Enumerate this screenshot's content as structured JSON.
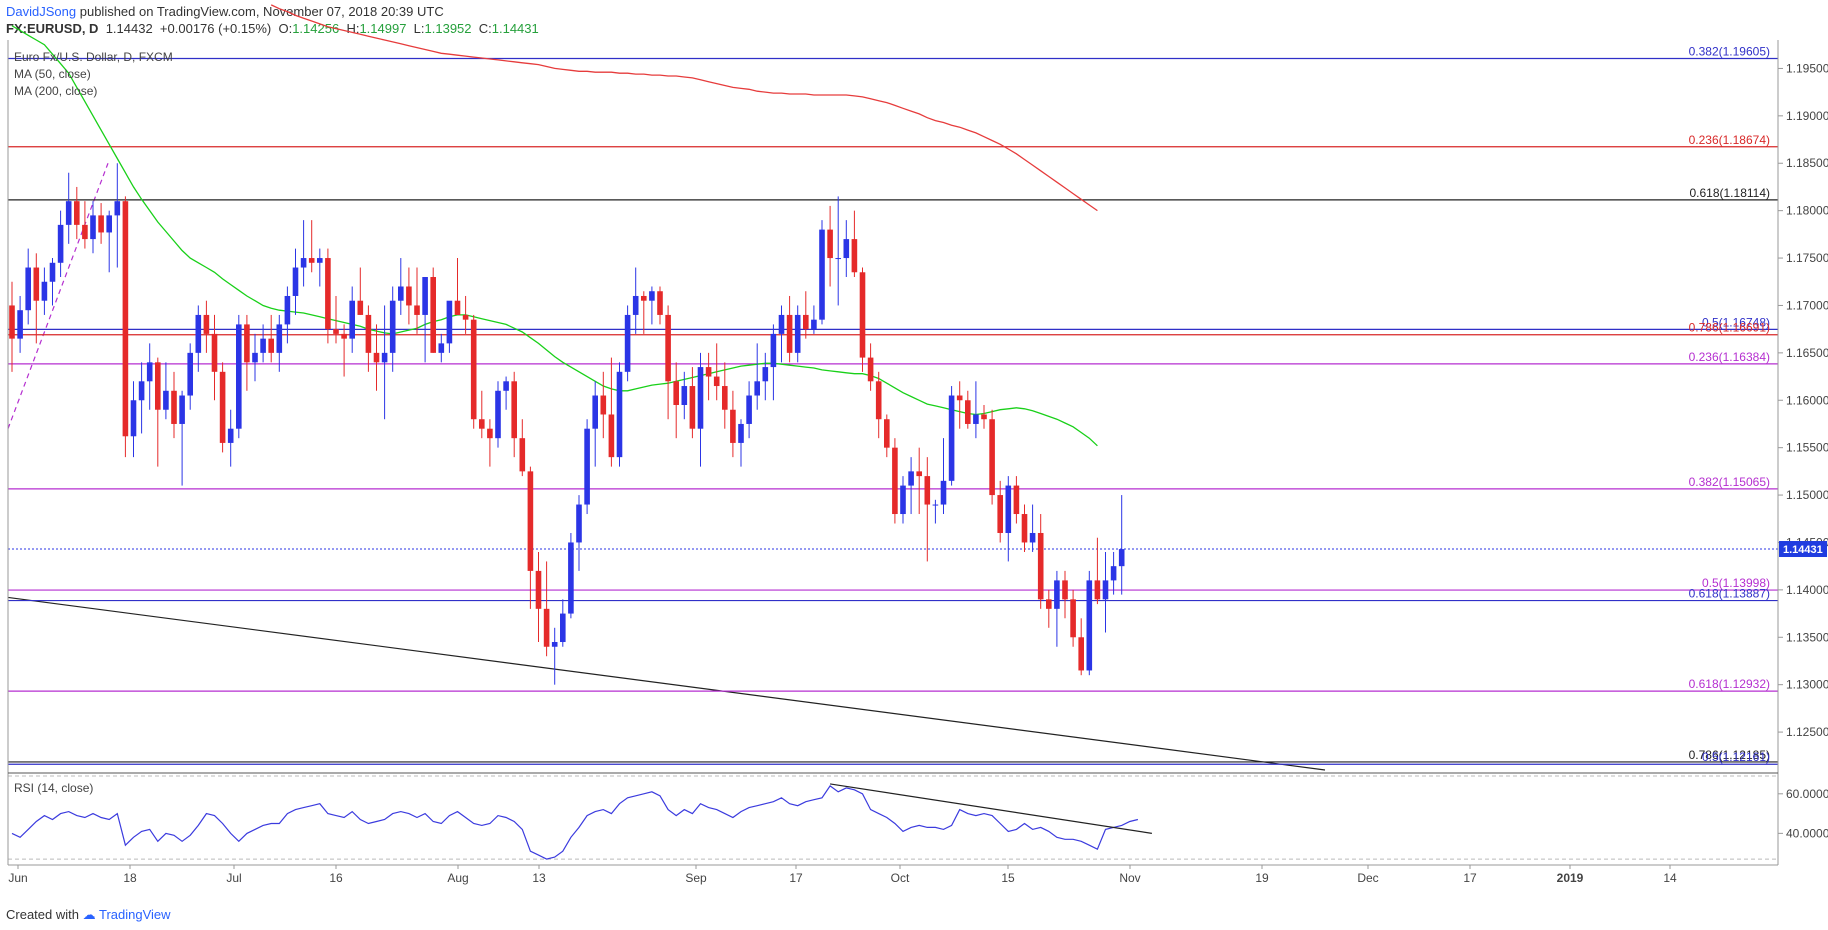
{
  "header": {
    "author": "DavidJSong",
    "published_text": "published on TradingView.com, November 07, 2018 20:39 UTC",
    "symbol": "FX:EURUSD, D",
    "last": "1.14432",
    "change_arrow": "▲",
    "change": "+0.00176 (+0.15%)",
    "open_label": "O:",
    "open": "1.14256",
    "high_label": "H:",
    "high": "1.14997",
    "low_label": "L:",
    "low": "1.13952",
    "close_label": "C:",
    "close": "1.14431"
  },
  "legend": {
    "instrument": "Euro Fx/U.S. Dollar, D, FXCM",
    "ma50": "MA (50, close)",
    "ma200": "MA (200, close)",
    "rsi": "RSI (14, close)"
  },
  "footer": {
    "created_with": "Created with",
    "brand": "TradingView"
  },
  "colors": {
    "up": "#2b35e6",
    "down": "#e52a2a",
    "ma50": "#19d019",
    "ma200": "#e63c3c",
    "fib_purple": "#b52fd0",
    "fib_blue": "#3030c8",
    "rsi_line": "#3b3bde",
    "last_price_bg": "#1f3ce0"
  },
  "chart_data": {
    "type": "candlestick",
    "symbol": "EURUSD",
    "price_range": [
      1.121,
      1.198
    ],
    "rsi_range": [
      24,
      69
    ],
    "x_ticks": [
      "Jun",
      "18",
      "Jul",
      "16",
      "Aug",
      "13",
      "Sep",
      "17",
      "Oct",
      "15",
      "Nov",
      "19",
      "Dec",
      "17",
      "2019",
      "14"
    ],
    "price_ticks": [
      "1.19500",
      "1.19000",
      "1.18500",
      "1.18000",
      "1.17500",
      "1.17000",
      "1.16500",
      "1.16000",
      "1.15500",
      "1.15000",
      "1.14500",
      "1.14000",
      "1.13500",
      "1.13000",
      "1.12500"
    ],
    "rsi_ticks": [
      "60.0000",
      "40.0000"
    ],
    "last_price_label": "1.14431",
    "candles": [
      [
        1.17,
        1.1725,
        1.163,
        1.1665
      ],
      [
        1.1665,
        1.171,
        1.165,
        1.1695
      ],
      [
        1.1695,
        1.176,
        1.168,
        1.174
      ],
      [
        1.174,
        1.1755,
        1.166,
        1.1705
      ],
      [
        1.1705,
        1.174,
        1.169,
        1.1725
      ],
      [
        1.1725,
        1.175,
        1.17,
        1.1745
      ],
      [
        1.1745,
        1.18,
        1.173,
        1.1785
      ],
      [
        1.1785,
        1.184,
        1.1765,
        1.181
      ],
      [
        1.181,
        1.1825,
        1.177,
        1.1785
      ],
      [
        1.1785,
        1.181,
        1.176,
        1.177
      ],
      [
        1.177,
        1.181,
        1.1755,
        1.1795
      ],
      [
        1.1795,
        1.1808,
        1.1765,
        1.1777
      ],
      [
        1.1777,
        1.18,
        1.1735,
        1.1795
      ],
      [
        1.1795,
        1.185,
        1.174,
        1.181
      ],
      [
        1.181,
        1.1815,
        1.154,
        1.1562
      ],
      [
        1.1562,
        1.162,
        1.154,
        1.16
      ],
      [
        1.16,
        1.164,
        1.1565,
        1.162
      ],
      [
        1.162,
        1.166,
        1.159,
        1.164
      ],
      [
        1.164,
        1.1645,
        1.153,
        1.159
      ],
      [
        1.159,
        1.164,
        1.158,
        1.161
      ],
      [
        1.161,
        1.163,
        1.156,
        1.1575
      ],
      [
        1.1575,
        1.161,
        1.151,
        1.1605
      ],
      [
        1.1605,
        1.166,
        1.159,
        1.165
      ],
      [
        1.165,
        1.17,
        1.163,
        1.169
      ],
      [
        1.169,
        1.1705,
        1.165,
        1.167
      ],
      [
        1.167,
        1.169,
        1.16,
        1.163
      ],
      [
        1.163,
        1.164,
        1.1545,
        1.1555
      ],
      [
        1.1555,
        1.159,
        1.153,
        1.157
      ],
      [
        1.157,
        1.169,
        1.156,
        1.168
      ],
      [
        1.168,
        1.169,
        1.161,
        1.164
      ],
      [
        1.164,
        1.167,
        1.162,
        1.165
      ],
      [
        1.165,
        1.168,
        1.164,
        1.1665
      ],
      [
        1.1665,
        1.169,
        1.164,
        1.165
      ],
      [
        1.165,
        1.169,
        1.163,
        1.168
      ],
      [
        1.168,
        1.172,
        1.166,
        1.171
      ],
      [
        1.171,
        1.176,
        1.169,
        1.174
      ],
      [
        1.174,
        1.179,
        1.172,
        1.175
      ],
      [
        1.175,
        1.179,
        1.1735,
        1.1745
      ],
      [
        1.1745,
        1.176,
        1.172,
        1.175
      ],
      [
        1.175,
        1.176,
        1.166,
        1.1675
      ],
      [
        1.1675,
        1.171,
        1.166,
        1.167
      ],
      [
        1.167,
        1.168,
        1.1625,
        1.1665
      ],
      [
        1.1665,
        1.172,
        1.165,
        1.1705
      ],
      [
        1.1705,
        1.174,
        1.169,
        1.169
      ],
      [
        1.169,
        1.17,
        1.163,
        1.165
      ],
      [
        1.165,
        1.168,
        1.161,
        1.164
      ],
      [
        1.164,
        1.17,
        1.158,
        1.165
      ],
      [
        1.165,
        1.172,
        1.163,
        1.1705
      ],
      [
        1.1705,
        1.175,
        1.169,
        1.172
      ],
      [
        1.172,
        1.174,
        1.168,
        1.17
      ],
      [
        1.17,
        1.174,
        1.167,
        1.169
      ],
      [
        1.169,
        1.173,
        1.164,
        1.173
      ],
      [
        1.173,
        1.174,
        1.165,
        1.165
      ],
      [
        1.165,
        1.167,
        1.164,
        1.166
      ],
      [
        1.166,
        1.17,
        1.165,
        1.1705
      ],
      [
        1.1705,
        1.175,
        1.169,
        1.169
      ],
      [
        1.169,
        1.171,
        1.167,
        1.1685
      ],
      [
        1.1685,
        1.169,
        1.157,
        1.158
      ],
      [
        1.158,
        1.161,
        1.156,
        1.157
      ],
      [
        1.157,
        1.158,
        1.153,
        1.156
      ],
      [
        1.156,
        1.162,
        1.155,
        1.161
      ],
      [
        1.161,
        1.1625,
        1.159,
        1.162
      ],
      [
        1.162,
        1.163,
        1.154,
        1.156
      ],
      [
        1.156,
        1.158,
        1.152,
        1.1525
      ],
      [
        1.1525,
        1.153,
        1.138,
        1.142
      ],
      [
        1.142,
        1.144,
        1.1345,
        1.138
      ],
      [
        1.138,
        1.143,
        1.133,
        1.134
      ],
      [
        1.134,
        1.136,
        1.13,
        1.1345
      ],
      [
        1.1345,
        1.139,
        1.134,
        1.1375
      ],
      [
        1.1375,
        1.146,
        1.137,
        1.145
      ],
      [
        1.145,
        1.15,
        1.142,
        1.149
      ],
      [
        1.149,
        1.158,
        1.148,
        1.157
      ],
      [
        1.157,
        1.162,
        1.153,
        1.1605
      ],
      [
        1.1605,
        1.163,
        1.156,
        1.1585
      ],
      [
        1.1585,
        1.1645,
        1.153,
        1.154
      ],
      [
        1.154,
        1.164,
        1.153,
        1.163
      ],
      [
        1.163,
        1.17,
        1.162,
        1.169
      ],
      [
        1.169,
        1.174,
        1.167,
        1.171
      ],
      [
        1.171,
        1.1715,
        1.167,
        1.1705
      ],
      [
        1.1705,
        1.172,
        1.168,
        1.1715
      ],
      [
        1.1715,
        1.172,
        1.168,
        1.169
      ],
      [
        1.169,
        1.17,
        1.158,
        1.162
      ],
      [
        1.162,
        1.164,
        1.156,
        1.1595
      ],
      [
        1.1595,
        1.163,
        1.158,
        1.1615
      ],
      [
        1.1615,
        1.1635,
        1.156,
        1.157
      ],
      [
        1.157,
        1.165,
        1.153,
        1.1635
      ],
      [
        1.1635,
        1.165,
        1.16,
        1.1625
      ],
      [
        1.1625,
        1.166,
        1.16,
        1.1615
      ],
      [
        1.1615,
        1.164,
        1.157,
        1.159
      ],
      [
        1.159,
        1.161,
        1.154,
        1.1555
      ],
      [
        1.1555,
        1.158,
        1.153,
        1.1575
      ],
      [
        1.1575,
        1.162,
        1.156,
        1.1605
      ],
      [
        1.1605,
        1.166,
        1.159,
        1.162
      ],
      [
        1.162,
        1.165,
        1.16,
        1.1635
      ],
      [
        1.1635,
        1.168,
        1.16,
        1.167
      ],
      [
        1.167,
        1.17,
        1.164,
        1.169
      ],
      [
        1.169,
        1.171,
        1.164,
        1.165
      ],
      [
        1.165,
        1.17,
        1.164,
        1.169
      ],
      [
        1.169,
        1.1715,
        1.1665,
        1.1675
      ],
      [
        1.1675,
        1.17,
        1.167,
        1.1685
      ],
      [
        1.1685,
        1.179,
        1.168,
        1.178
      ],
      [
        1.178,
        1.1805,
        1.172,
        1.175
      ],
      [
        1.175,
        1.1815,
        1.17,
        1.175
      ],
      [
        1.175,
        1.179,
        1.173,
        1.177
      ],
      [
        1.177,
        1.18,
        1.173,
        1.1735
      ],
      [
        1.1735,
        1.174,
        1.163,
        1.1645
      ],
      [
        1.1645,
        1.166,
        1.161,
        1.162
      ],
      [
        1.162,
        1.163,
        1.156,
        1.158
      ],
      [
        1.158,
        1.1585,
        1.154,
        1.155
      ],
      [
        1.155,
        1.156,
        1.147,
        1.148
      ],
      [
        1.148,
        1.152,
        1.147,
        1.151
      ],
      [
        1.151,
        1.154,
        1.148,
        1.1525
      ],
      [
        1.1525,
        1.155,
        1.148,
        1.152
      ],
      [
        1.152,
        1.154,
        1.143,
        1.149
      ],
      [
        1.149,
        1.1495,
        1.147,
        1.149
      ],
      [
        1.149,
        1.156,
        1.148,
        1.1515
      ],
      [
        1.1515,
        1.1615,
        1.151,
        1.1605
      ],
      [
        1.1605,
        1.162,
        1.157,
        1.16
      ],
      [
        1.16,
        1.161,
        1.157,
        1.1575
      ],
      [
        1.1575,
        1.162,
        1.156,
        1.1585
      ],
      [
        1.1585,
        1.1595,
        1.157,
        1.158
      ],
      [
        1.158,
        1.159,
        1.149,
        1.15
      ],
      [
        1.15,
        1.1515,
        1.145,
        1.146
      ],
      [
        1.146,
        1.152,
        1.143,
        1.151
      ],
      [
        1.151,
        1.152,
        1.147,
        1.148
      ],
      [
        1.148,
        1.149,
        1.144,
        1.145
      ],
      [
        1.145,
        1.149,
        1.144,
        1.146
      ],
      [
        1.146,
        1.148,
        1.138,
        1.139
      ],
      [
        1.139,
        1.14,
        1.136,
        1.138
      ],
      [
        1.138,
        1.142,
        1.134,
        1.141
      ],
      [
        1.141,
        1.142,
        1.137,
        1.139
      ],
      [
        1.139,
        1.14,
        1.134,
        1.135
      ],
      [
        1.135,
        1.137,
        1.131,
        1.1315
      ],
      [
        1.1315,
        1.142,
        1.131,
        1.141
      ],
      [
        1.141,
        1.1455,
        1.1385,
        1.139
      ],
      [
        1.139,
        1.144,
        1.1355,
        1.141
      ],
      [
        1.141,
        1.144,
        1.1395,
        1.1425
      ],
      [
        1.1425,
        1.15,
        1.1395,
        1.1443
      ]
    ],
    "ma50": [
      1.1995,
      1.199,
      1.1985,
      1.198,
      1.1975,
      1.1965,
      1.1955,
      1.1945,
      1.193,
      1.1915,
      1.19,
      1.1885,
      1.187,
      1.1855,
      1.184,
      1.1825,
      1.1812,
      1.18,
      1.1788,
      1.1778,
      1.1768,
      1.1758,
      1.175,
      1.1745,
      1.174,
      1.1735,
      1.1728,
      1.1722,
      1.1716,
      1.171,
      1.1705,
      1.17,
      1.1697,
      1.1695,
      1.1694,
      1.1693,
      1.1692,
      1.169,
      1.1688,
      1.1686,
      1.1684,
      1.1682,
      1.168,
      1.1678,
      1.1675,
      1.1673,
      1.1671,
      1.167,
      1.1672,
      1.1674,
      1.1676,
      1.168,
      1.1683,
      1.1685,
      1.1688,
      1.169,
      1.169,
      1.1688,
      1.1686,
      1.1684,
      1.1682,
      1.168,
      1.1676,
      1.1672,
      1.1666,
      1.166,
      1.1653,
      1.1646,
      1.164,
      1.1635,
      1.163,
      1.1625,
      1.162,
      1.1615,
      1.1612,
      1.161,
      1.161,
      1.1612,
      1.1614,
      1.1616,
      1.1617,
      1.1618,
      1.162,
      1.1622,
      1.1624,
      1.1626,
      1.1628,
      1.163,
      1.1632,
      1.1634,
      1.1636,
      1.1637,
      1.1638,
      1.1639,
      1.1639,
      1.1638,
      1.1637,
      1.1636,
      1.1635,
      1.1634,
      1.1632,
      1.1631,
      1.163,
      1.1629,
      1.1628,
      1.1628,
      1.1626,
      1.1623,
      1.1618,
      1.1613,
      1.1608,
      1.1604,
      1.16,
      1.1596,
      1.1594,
      1.1592,
      1.159,
      1.1588,
      1.1586,
      1.1585,
      1.1586,
      1.1588,
      1.159,
      1.1591,
      1.1592,
      1.1591,
      1.1589,
      1.1586,
      1.1583,
      1.158,
      1.1576,
      1.1572,
      1.1566,
      1.156,
      1.1552
    ],
    "ma200": [
      null,
      null,
      null,
      null,
      null,
      null,
      null,
      null,
      null,
      null,
      null,
      null,
      null,
      null,
      null,
      null,
      null,
      null,
      null,
      null,
      null,
      null,
      null,
      null,
      null,
      null,
      null,
      null,
      null,
      null,
      null,
      null,
      1.2017,
      1.2013,
      1.201,
      1.2006,
      1.2003,
      1.2,
      1.1997,
      1.1994,
      1.1992,
      1.199,
      1.1988,
      1.1986,
      1.1984,
      1.1982,
      1.198,
      1.1978,
      1.1976,
      1.1974,
      1.1972,
      1.197,
      1.1968,
      1.1966,
      1.1965,
      1.1964,
      1.1963,
      1.1962,
      1.1961,
      1.196,
      1.1959,
      1.1958,
      1.1957,
      1.1956,
      1.1955,
      1.1954,
      1.1952,
      1.195,
      1.1949,
      1.1948,
      1.1947,
      1.1947,
      1.1946,
      1.1946,
      1.1946,
      1.1945,
      1.1945,
      1.1944,
      1.1944,
      1.1943,
      1.1943,
      1.1942,
      1.1942,
      1.1941,
      1.194,
      1.1938,
      1.1936,
      1.1934,
      1.1932,
      1.193,
      1.1929,
      1.1928,
      1.1926,
      1.1925,
      1.1924,
      1.1924,
      1.1923,
      1.1923,
      1.1923,
      1.1922,
      1.1922,
      1.1922,
      1.1922,
      1.1922,
      1.1921,
      1.192,
      1.1918,
      1.1916,
      1.1914,
      1.1911,
      1.1908,
      1.1905,
      1.1902,
      1.1898,
      1.1895,
      1.1893,
      1.189,
      1.1888,
      1.1885,
      1.1882,
      1.1878,
      1.1874,
      1.187,
      1.1865,
      1.186,
      1.1854,
      1.1848,
      1.1842,
      1.1836,
      1.183,
      1.1824,
      1.1818,
      1.1812,
      1.1806,
      1.18
    ],
    "rsi": [
      40,
      38,
      42,
      46,
      49,
      47,
      50,
      51,
      49,
      48,
      50,
      48,
      47,
      50,
      34,
      38,
      41,
      42,
      36,
      40,
      39,
      36,
      39,
      44,
      50,
      49,
      45,
      40,
      36,
      40,
      42,
      44,
      45,
      45,
      50,
      52,
      53,
      54,
      55,
      50,
      49,
      48,
      51,
      47,
      45,
      46,
      47,
      50,
      51,
      50,
      48,
      50,
      46,
      45,
      49,
      51,
      48,
      45,
      44,
      45,
      49,
      48,
      46,
      42,
      31,
      29,
      27,
      28,
      31,
      38,
      43,
      49,
      51,
      52,
      50,
      55,
      58,
      59,
      60,
      61,
      59,
      52,
      49,
      52,
      50,
      55,
      53,
      52,
      50,
      48,
      51,
      53,
      54,
      55,
      56,
      58,
      55,
      54,
      56,
      57,
      58,
      64,
      61,
      63,
      62,
      60,
      52,
      50,
      48,
      45,
      41,
      43,
      44,
      43,
      43,
      42,
      44,
      52,
      50,
      49,
      50,
      49,
      45,
      41,
      42,
      45,
      42,
      43,
      41,
      38,
      37,
      37,
      36,
      34,
      32,
      42,
      43,
      44,
      46,
      47
    ],
    "fib_levels": [
      {
        "label": "0.236(1.18674)",
        "price": 1.18674,
        "color": "#d82828"
      },
      {
        "label": "0.382(1.19605)",
        "price": 1.19605,
        "color": "#3030c8"
      },
      {
        "label": "0.618(1.18114)",
        "price": 1.18114,
        "color": "#222222"
      },
      {
        "label": "0.5(1.16748)",
        "price": 1.16748,
        "color": "#3030c8"
      },
      {
        "label": "0.786(1.16691)",
        "price": 1.16691,
        "color": "#d82828"
      },
      {
        "label": "0.236(1.16384)",
        "price": 1.16384,
        "color": "#b52fd0"
      },
      {
        "label": "0.382(1.15065)",
        "price": 1.15065,
        "color": "#b52fd0"
      },
      {
        "label": "0.5(1.13998)",
        "price": 1.13998,
        "color": "#b52fd0"
      },
      {
        "label": "0.618(1.13887)",
        "price": 1.13887,
        "color": "#3030c8"
      },
      {
        "label": "0.618(1.12932)",
        "price": 1.12932,
        "color": "#b52fd0"
      },
      {
        "label": "0.786(1.12185)",
        "price": 1.12185,
        "color": "#222222"
      },
      {
        "label": "0.5(1.12161)",
        "price": 1.12161,
        "color": "#3030c8"
      }
    ]
  }
}
